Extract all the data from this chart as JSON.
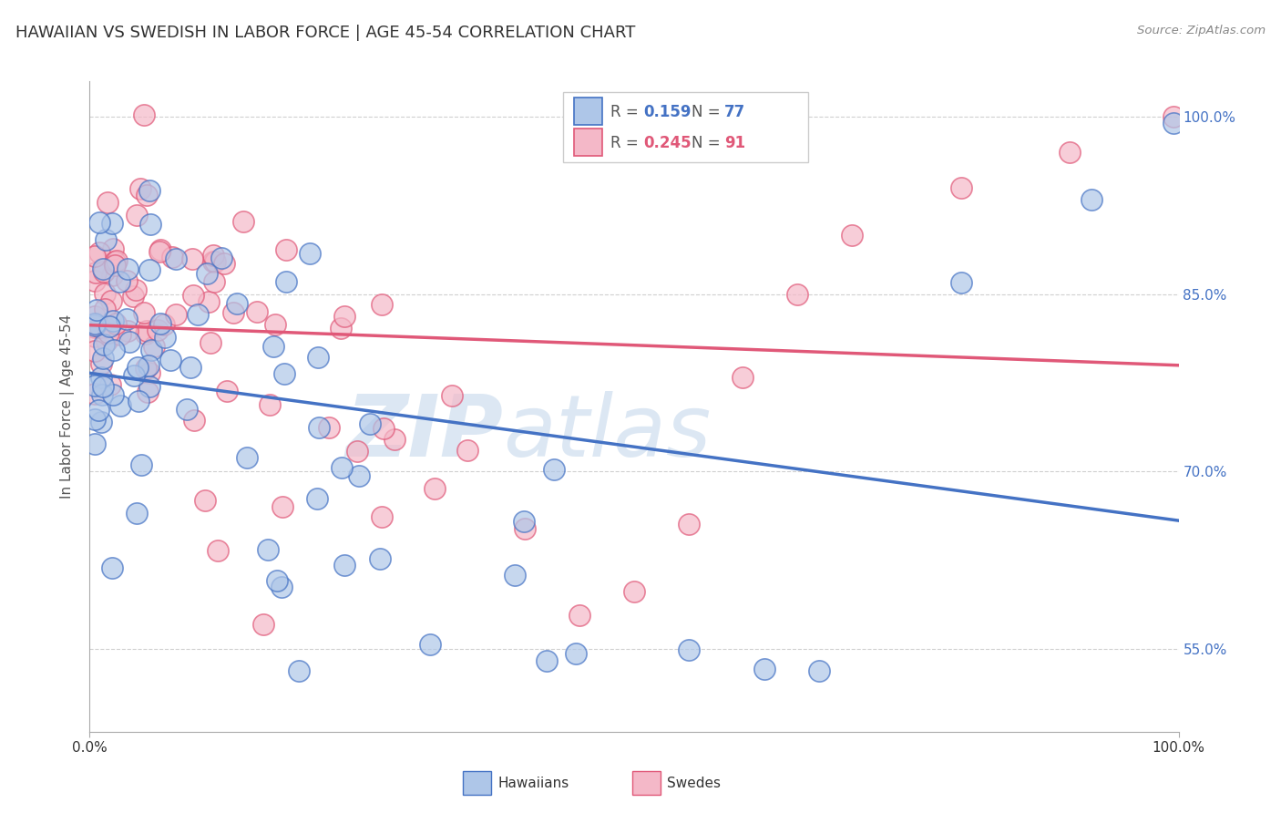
{
  "title": "HAWAIIAN VS SWEDISH IN LABOR FORCE | AGE 45-54 CORRELATION CHART",
  "source_text": "Source: ZipAtlas.com",
  "ylabel": "In Labor Force | Age 45-54",
  "xlim": [
    0.0,
    1.0
  ],
  "ylim": [
    0.48,
    1.03
  ],
  "yticks": [
    0.55,
    0.7,
    0.85,
    1.0
  ],
  "ytick_labels": [
    "55.0%",
    "70.0%",
    "85.0%",
    "100.0%"
  ],
  "xtick_labels": [
    "0.0%",
    "100.0%"
  ],
  "xticks": [
    0.0,
    1.0
  ],
  "legend_r_hawaiian": "0.159",
  "legend_n_hawaiian": "77",
  "legend_r_swede": "0.245",
  "legend_n_swede": "91",
  "hawaiian_color": "#aec6e8",
  "swede_color": "#f4b8c8",
  "hawaiian_line_color": "#4472c4",
  "swede_line_color": "#e05878",
  "watermark_zip": "ZIP",
  "watermark_atlas": "atlas",
  "watermark_color_zip": "#c5d8ec",
  "watermark_color_atlas": "#c5d8ec",
  "background_color": "#ffffff",
  "grid_color": "#d0d0d0",
  "title_fontsize": 13,
  "axis_label_fontsize": 11,
  "tick_fontsize": 11
}
